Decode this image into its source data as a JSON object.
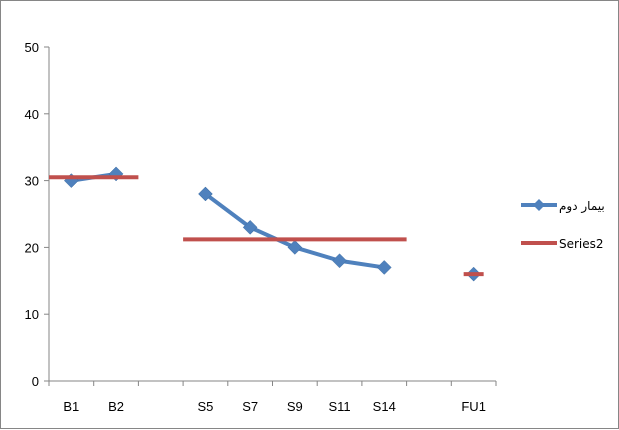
{
  "chart_data": {
    "type": "line",
    "categories": [
      "B1",
      "B2",
      "",
      "S5",
      "S7",
      "S9",
      "S11",
      "S14",
      "",
      "FU1"
    ],
    "ylim": [
      0,
      50
    ],
    "yticks": [
      0,
      10,
      20,
      30,
      40,
      50
    ],
    "grid": false,
    "legend_position": "right",
    "series": [
      {
        "name": "بیمار دوم",
        "color": "#4F81BD",
        "marker": "diamond",
        "values": [
          30,
          31,
          null,
          28,
          23,
          20,
          18,
          17,
          null,
          16
        ]
      },
      {
        "name": "Series2",
        "color": "#C0504D",
        "marker": "none",
        "values": [
          30.5,
          30.5,
          null,
          21.2,
          21.2,
          21.2,
          21.2,
          21.2,
          null,
          16
        ]
      }
    ]
  }
}
